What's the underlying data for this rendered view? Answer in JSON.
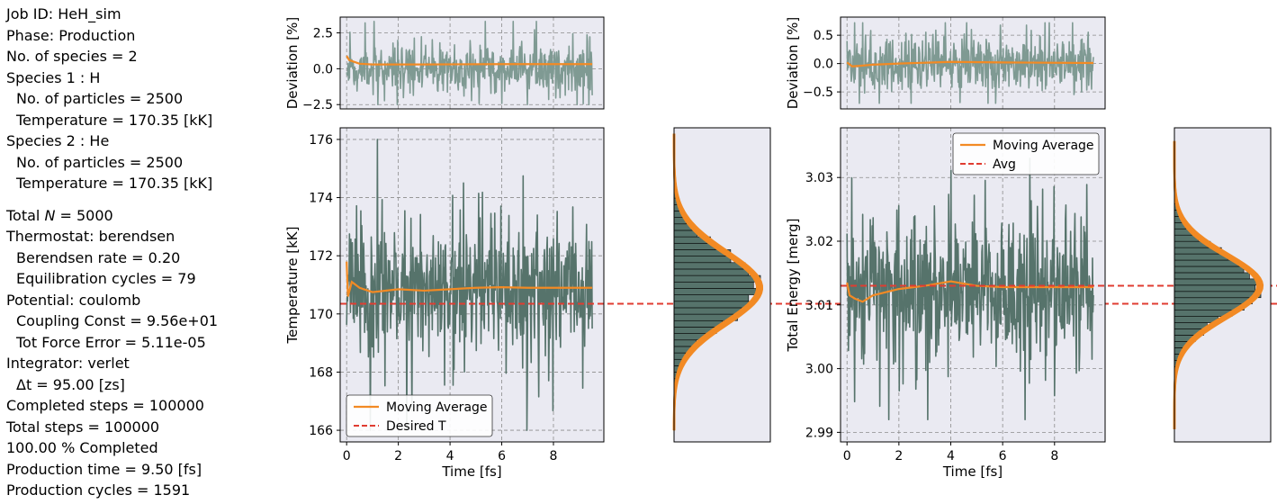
{
  "info": {
    "lines": [
      "Job ID: HeH_sim",
      "Phase: Production",
      "No. of species = 2",
      "Species 1 : H",
      "No. of particles = 2500",
      "Temperature = 170.35  [kK]",
      "Species 2 : He",
      "No. of particles = 2500",
      "Temperature = 170.35  [kK]",
      "Total N = 5000",
      "Thermostat: berendsen",
      "Berendsen rate = 0.20",
      "Equilibration cycles = 79",
      "Potential: coulomb",
      "Coupling Const = 9.56e+01",
      "Tot Force Error = 5.11e-05",
      "Integrator: verlet",
      "Δt = 95.00  [zs]",
      "Completed steps = 100000",
      "Total steps = 100000",
      "100.00 % Completed",
      "Production time = 9.50  [fs]",
      "Production cycles = 1591"
    ]
  },
  "colors": {
    "signal": "#56736b",
    "signal_light": "#7f9a93",
    "moving_average": "#f28a24",
    "reference": "#e03c31",
    "panel_bg": "#eaeaf2"
  },
  "chart_data": [
    {
      "id": "temp_deviation",
      "type": "line",
      "ylabel": "Deviation [%]",
      "xlim": [
        -0.25,
        9.95
      ],
      "ylim": [
        -2.8,
        3.6
      ],
      "yticks": [
        -2.5,
        0.0,
        2.5
      ],
      "ytick_labels": [
        "−2.5",
        "0.0",
        "2.5"
      ],
      "grid": true,
      "series": [
        {
          "name": "signal",
          "approx_mean": 0.0,
          "approx_range": [
            -2.5,
            3.3
          ],
          "x": [
            0,
            9.5
          ]
        },
        {
          "name": "moving average",
          "x": [
            0,
            0.1,
            0.5,
            1,
            3,
            6,
            9.5
          ],
          "y": [
            0.9,
            0.6,
            0.35,
            0.3,
            0.3,
            0.32,
            0.32
          ]
        }
      ]
    },
    {
      "id": "temperature",
      "type": "line",
      "xlabel": "Time [fs]",
      "ylabel": "Temperature [kK]",
      "xlim": [
        -0.25,
        9.95
      ],
      "ylim": [
        165.6,
        176.4
      ],
      "xticks": [
        0,
        2,
        4,
        6,
        8
      ],
      "yticks": [
        166,
        168,
        170,
        172,
        174,
        176
      ],
      "grid": true,
      "legend_position": "lower-left",
      "legend": [
        "Moving Average",
        "Desired T"
      ],
      "series": [
        {
          "name": "signal",
          "approx_mean": 170.9,
          "approx_range": [
            166.0,
            176.0
          ]
        },
        {
          "name": "Moving Average",
          "x": [
            0,
            0.05,
            0.2,
            0.5,
            1,
            2,
            3,
            4,
            5,
            6,
            7,
            8,
            9.5
          ],
          "y": [
            171.8,
            170.6,
            171.1,
            170.9,
            170.75,
            170.85,
            170.8,
            170.85,
            170.9,
            170.92,
            170.9,
            170.9,
            170.9
          ]
        },
        {
          "name": "Desired T",
          "y": 170.35
        }
      ]
    },
    {
      "id": "temperature_hist",
      "type": "bar",
      "orientation": "horizontal",
      "ylim": [
        165.6,
        176.4
      ],
      "bins": [
        166,
        176.2
      ],
      "approx_mean": 170.9,
      "approx_std": 1.2
    },
    {
      "id": "energy_deviation",
      "type": "line",
      "ylabel": "Deviation [%]",
      "xlim": [
        -0.25,
        9.95
      ],
      "ylim": [
        -0.8,
        0.82
      ],
      "yticks": [
        -0.5,
        0.0,
        0.5
      ],
      "ytick_labels": [
        "−0.5",
        "0.0",
        "0.5"
      ],
      "grid": true,
      "series": [
        {
          "name": "signal",
          "approx_mean": 0.0,
          "approx_range": [
            -0.7,
            0.7
          ]
        },
        {
          "name": "moving average",
          "x": [
            0,
            0.2,
            0.5,
            1,
            2,
            4,
            6,
            9.5
          ],
          "y": [
            0.02,
            -0.05,
            -0.04,
            -0.02,
            0.0,
            0.03,
            0.02,
            0.01
          ]
        }
      ]
    },
    {
      "id": "total_energy",
      "type": "line",
      "xlabel": "Time [fs]",
      "ylabel": "Total Energy [merg]",
      "xlim": [
        -0.25,
        9.95
      ],
      "ylim": [
        2.9885,
        3.0378
      ],
      "xticks": [
        0,
        2,
        4,
        6,
        8
      ],
      "yticks": [
        2.99,
        3.0,
        3.01,
        3.02,
        3.03
      ],
      "ytick_labels": [
        "2.99",
        "3.00",
        "3.01",
        "3.02",
        "3.03"
      ],
      "grid": true,
      "legend_position": "upper-right",
      "legend": [
        "Moving Average",
        "Avg"
      ],
      "series": [
        {
          "name": "signal",
          "approx_mean": 3.013,
          "approx_range": [
            2.992,
            3.033
          ]
        },
        {
          "name": "Moving Average",
          "x": [
            0,
            0.1,
            0.3,
            0.6,
            1,
            2,
            3,
            4,
            5,
            6,
            8,
            9.5
          ],
          "y": [
            3.0135,
            3.0115,
            3.011,
            3.0105,
            3.0115,
            3.0125,
            3.013,
            3.0137,
            3.013,
            3.0128,
            3.0128,
            3.0128
          ]
        },
        {
          "name": "Avg",
          "y": 3.013
        }
      ]
    },
    {
      "id": "energy_hist",
      "type": "bar",
      "orientation": "horizontal",
      "ylim": [
        2.9885,
        3.0378
      ],
      "bins": [
        2.9905,
        3.0357
      ],
      "approx_mean": 3.013,
      "approx_std": 0.0048
    }
  ]
}
